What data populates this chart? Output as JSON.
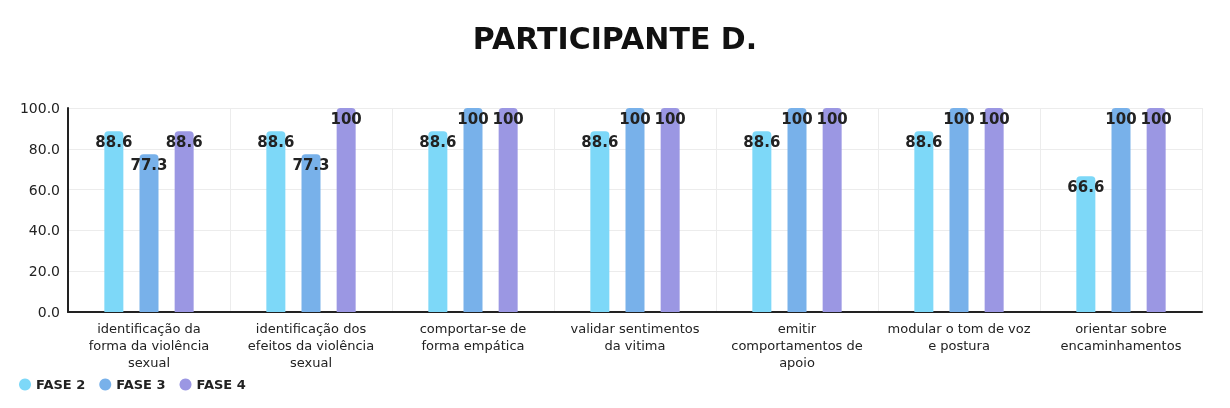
{
  "chart_data": {
    "type": "bar",
    "title": "PARTICIPANTE D.",
    "categories": [
      "identificação da forma da violência sexual",
      "identificação dos efeitos da violência sexual",
      "comportar-se de forma empática",
      "validar sentimentos da vitima",
      "emitir comportamentos de apoio",
      "modular o tom de voz e postura",
      "orientar sobre encaminhamentos"
    ],
    "series": [
      {
        "name": "FASE 2",
        "color": "#7dd8f8",
        "values": [
          88.6,
          88.6,
          88.6,
          88.6,
          88.6,
          88.6,
          66.6
        ]
      },
      {
        "name": "FASE 3",
        "color": "#78b1ea",
        "values": [
          77.3,
          77.3,
          100,
          100,
          100,
          100,
          100
        ]
      },
      {
        "name": "FASE 4",
        "color": "#9b97e3",
        "values": [
          88.6,
          100,
          100,
          100,
          100,
          100,
          100
        ]
      }
    ],
    "ylim": [
      0,
      100
    ],
    "yticks": [
      {
        "value": 0,
        "label": "0.0"
      },
      {
        "value": 20,
        "label": "20.0"
      },
      {
        "value": 40,
        "label": "40.0"
      },
      {
        "value": 60,
        "label": "60.0"
      },
      {
        "value": 80,
        "label": "80.0"
      },
      {
        "value": 100,
        "label": "100.0"
      }
    ],
    "grid": true,
    "legend": "bottom left",
    "data_labels": true
  }
}
